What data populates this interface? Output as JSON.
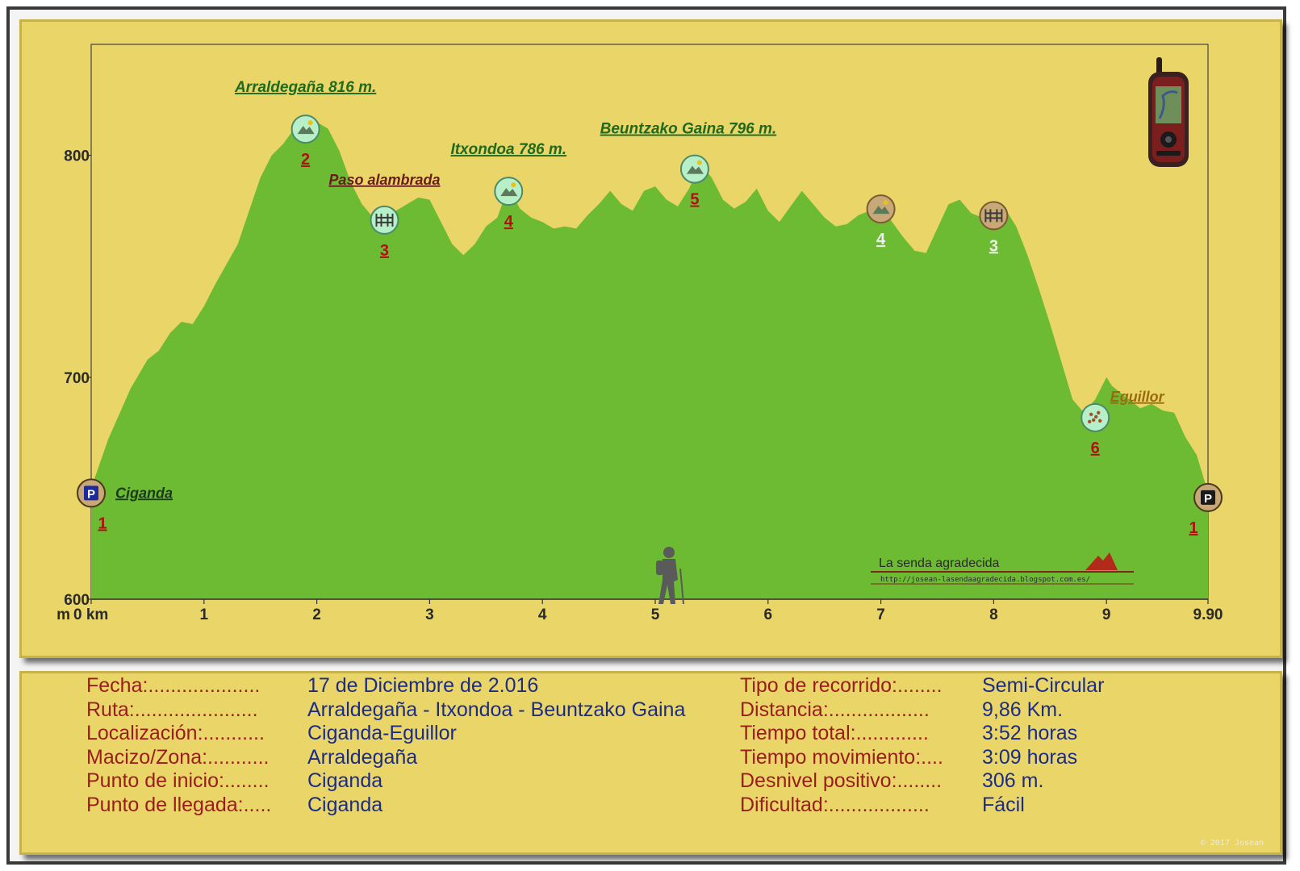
{
  "chart_data": {
    "type": "area",
    "xlabel": "km",
    "ylabel": "m",
    "xlim": [
      0,
      9.9
    ],
    "ylim": [
      600,
      850
    ],
    "x_ticks": [
      {
        "value": 0,
        "label": "0 km"
      },
      {
        "value": 1,
        "label": "1"
      },
      {
        "value": 2,
        "label": "2"
      },
      {
        "value": 3,
        "label": "3"
      },
      {
        "value": 4,
        "label": "4"
      },
      {
        "value": 5,
        "label": "5"
      },
      {
        "value": 6,
        "label": "6"
      },
      {
        "value": 7,
        "label": "7"
      },
      {
        "value": 8,
        "label": "8"
      },
      {
        "value": 9,
        "label": "9"
      },
      {
        "value": 9.9,
        "label": "9.90"
      }
    ],
    "y_ticks": [
      {
        "value": 600,
        "label": "600"
      },
      {
        "value": 700,
        "label": "700"
      },
      {
        "value": 800,
        "label": "800"
      }
    ],
    "y_unit_label": "m",
    "fill_color": "#6dbb33",
    "profile": [
      [
        0.0,
        650
      ],
      [
        0.15,
        672
      ],
      [
        0.35,
        695
      ],
      [
        0.5,
        708
      ],
      [
        0.6,
        712
      ],
      [
        0.7,
        720
      ],
      [
        0.8,
        725
      ],
      [
        0.9,
        724
      ],
      [
        1.0,
        732
      ],
      [
        1.1,
        742
      ],
      [
        1.2,
        751
      ],
      [
        1.3,
        760
      ],
      [
        1.4,
        775
      ],
      [
        1.5,
        790
      ],
      [
        1.6,
        800
      ],
      [
        1.7,
        805
      ],
      [
        1.8,
        812
      ],
      [
        1.9,
        814
      ],
      [
        2.0,
        815
      ],
      [
        2.1,
        812
      ],
      [
        2.2,
        802
      ],
      [
        2.3,
        788
      ],
      [
        2.4,
        778
      ],
      [
        2.5,
        772
      ],
      [
        2.6,
        773
      ],
      [
        2.7,
        775
      ],
      [
        2.8,
        778
      ],
      [
        2.9,
        781
      ],
      [
        3.0,
        780
      ],
      [
        3.1,
        770
      ],
      [
        3.2,
        760
      ],
      [
        3.3,
        755
      ],
      [
        3.4,
        760
      ],
      [
        3.5,
        768
      ],
      [
        3.6,
        772
      ],
      [
        3.7,
        786
      ],
      [
        3.8,
        776
      ],
      [
        3.9,
        772
      ],
      [
        4.0,
        770
      ],
      [
        4.1,
        767
      ],
      [
        4.2,
        768
      ],
      [
        4.3,
        767
      ],
      [
        4.4,
        773
      ],
      [
        4.5,
        778
      ],
      [
        4.6,
        784
      ],
      [
        4.7,
        778
      ],
      [
        4.8,
        775
      ],
      [
        4.9,
        784
      ],
      [
        5.0,
        786
      ],
      [
        5.1,
        780
      ],
      [
        5.2,
        777
      ],
      [
        5.3,
        785
      ],
      [
        5.4,
        796
      ],
      [
        5.5,
        790
      ],
      [
        5.6,
        780
      ],
      [
        5.7,
        776
      ],
      [
        5.8,
        779
      ],
      [
        5.9,
        785
      ],
      [
        6.0,
        775
      ],
      [
        6.1,
        770
      ],
      [
        6.2,
        777
      ],
      [
        6.3,
        784
      ],
      [
        6.4,
        778
      ],
      [
        6.5,
        772
      ],
      [
        6.6,
        768
      ],
      [
        6.7,
        769
      ],
      [
        6.8,
        773
      ],
      [
        6.9,
        775
      ],
      [
        7.0,
        778
      ],
      [
        7.1,
        770
      ],
      [
        7.2,
        763
      ],
      [
        7.3,
        757
      ],
      [
        7.4,
        756
      ],
      [
        7.5,
        767
      ],
      [
        7.6,
        778
      ],
      [
        7.7,
        780
      ],
      [
        7.8,
        774
      ],
      [
        7.9,
        772
      ],
      [
        8.0,
        775
      ],
      [
        8.1,
        776
      ],
      [
        8.2,
        768
      ],
      [
        8.3,
        755
      ],
      [
        8.4,
        740
      ],
      [
        8.5,
        724
      ],
      [
        8.6,
        707
      ],
      [
        8.7,
        690
      ],
      [
        8.8,
        684
      ],
      [
        8.9,
        690
      ],
      [
        9.0,
        700
      ],
      [
        9.05,
        696
      ],
      [
        9.1,
        694
      ],
      [
        9.2,
        690
      ],
      [
        9.3,
        686
      ],
      [
        9.4,
        688
      ],
      [
        9.5,
        685
      ],
      [
        9.6,
        684
      ],
      [
        9.7,
        673
      ],
      [
        9.8,
        665
      ],
      [
        9.9,
        648
      ]
    ],
    "waypoints": [
      {
        "x": 0.0,
        "y": 650,
        "number": "1",
        "name": "Ciganda",
        "icon": "parking-icon",
        "style": "dark"
      },
      {
        "x": 1.9,
        "y": 814,
        "number": "2",
        "name": "Arraldegaña 816 m.",
        "icon": "summit-icon",
        "style": "active"
      },
      {
        "x": 2.6,
        "y": 773,
        "number": "3",
        "name": "Paso alambrada",
        "icon": "fence-icon",
        "style": "active"
      },
      {
        "x": 3.7,
        "y": 786,
        "number": "4",
        "name": "Itxondoa 786 m.",
        "icon": "summit-icon",
        "style": "active"
      },
      {
        "x": 5.35,
        "y": 796,
        "number": "5",
        "name": "Beuntzako Gaina 796 m.",
        "icon": "summit-icon",
        "style": "active"
      },
      {
        "x": 7.0,
        "y": 778,
        "number": "4",
        "name": "",
        "icon": "summit-icon",
        "style": "repeat"
      },
      {
        "x": 8.0,
        "y": 775,
        "number": "3",
        "name": "",
        "icon": "fence-icon",
        "style": "repeat"
      },
      {
        "x": 8.9,
        "y": 684,
        "number": "6",
        "name": "Eguillor",
        "icon": "village-icon",
        "style": "active"
      },
      {
        "x": 9.9,
        "y": 648,
        "number": "1",
        "name": "",
        "icon": "parking-icon",
        "style": "dark"
      }
    ]
  },
  "branding": {
    "blog_name": "La senda agradecida",
    "blog_url": "http://josean-lasendaagradecida.blogspot.com.es/",
    "copyright": "© 2017 Josean"
  },
  "info_left": [
    {
      "label": "Fecha:....................",
      "value": "17 de Diciembre de 2.016"
    },
    {
      "label": "Ruta:......................",
      "value": "Arraldegaña - Itxondoa - Beuntzako Gaina"
    },
    {
      "label": "Localización:...........",
      "value": "Ciganda-Eguillor"
    },
    {
      "label": "Macizo/Zona:...........",
      "value": "Arraldegaña"
    },
    {
      "label": "Punto de inicio:........",
      "value": "Ciganda"
    },
    {
      "label": "Punto de llegada:.....",
      "value": "Ciganda"
    }
  ],
  "info_right": [
    {
      "label": "Tipo de recorrido:........",
      "value": "Semi-Circular"
    },
    {
      "label": "Distancia:..................",
      "value": "9,86 Km."
    },
    {
      "label": "Tiempo total:.............",
      "value": "3:52 horas"
    },
    {
      "label": "Tiempo movimiento:....",
      "value": "3:09 horas"
    },
    {
      "label": "Desnivel positivo:........",
      "value": "306 m."
    },
    {
      "label": "Dificultad:..................",
      "value": "Fácil"
    }
  ]
}
